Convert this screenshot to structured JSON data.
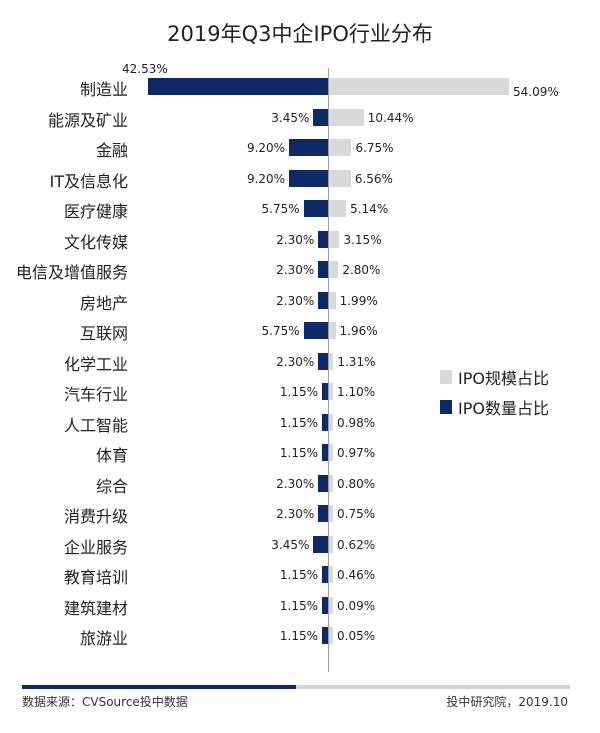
{
  "title": "2019年Q3中企IPO行业分布",
  "legend": {
    "items": [
      {
        "label": "IPO规模占比",
        "color": "#d9d9d9"
      },
      {
        "label": "IPO数量占比",
        "color": "#0d2a66"
      }
    ]
  },
  "footer": {
    "source": "数据来源：CVSource投中数据",
    "credit": "投中研究院，2019.10"
  },
  "colors": {
    "count_bar": "#0d2a66",
    "scale_bar": "#d9d9d9",
    "axis": "#9aa0a6"
  },
  "chart_data": {
    "type": "bar",
    "orientation": "horizontal-diverging",
    "title": "2019年Q3中企IPO行业分布",
    "xlabel": "",
    "ylabel": "",
    "legend_position": "right",
    "grid": false,
    "categories": [
      "制造业",
      "能源及矿业",
      "金融",
      "IT及信息化",
      "医疗健康",
      "文化传媒",
      "电信及增值服务",
      "房地产",
      "互联网",
      "化学工业",
      "汽车行业",
      "人工智能",
      "体育",
      "综合",
      "消费升级",
      "企业服务",
      "教育培训",
      "建筑建材",
      "旅游业"
    ],
    "series": [
      {
        "name": "IPO数量占比",
        "direction": "left",
        "color": "#0d2a66",
        "values": [
          42.53,
          3.45,
          9.2,
          9.2,
          5.75,
          2.3,
          2.3,
          2.3,
          5.75,
          2.3,
          1.15,
          1.15,
          1.15,
          2.3,
          2.3,
          3.45,
          1.15,
          1.15,
          1.15
        ],
        "labels": [
          "42.53%",
          "3.45%",
          "9.20%",
          "9.20%",
          "5.75%",
          "2.30%",
          "2.30%",
          "2.30%",
          "5.75%",
          "2.30%",
          "1.15%",
          "1.15%",
          "1.15%",
          "2.30%",
          "2.30%",
          "3.45%",
          "1.15%",
          "1.15%",
          "1.15%"
        ]
      },
      {
        "name": "IPO规模占比",
        "direction": "right",
        "color": "#d9d9d9",
        "values": [
          54.09,
          10.44,
          6.75,
          6.56,
          5.14,
          3.15,
          2.8,
          1.99,
          1.96,
          1.31,
          1.1,
          0.98,
          0.97,
          0.8,
          0.75,
          0.62,
          0.46,
          0.09,
          0.05
        ],
        "labels": [
          "54.09%",
          "10.44%",
          "6.75%",
          "6.56%",
          "5.14%",
          "3.15%",
          "2.80%",
          "1.99%",
          "1.96%",
          "1.31%",
          "1.10%",
          "0.98%",
          "0.97%",
          "0.80%",
          "0.75%",
          "0.62%",
          "0.46%",
          "0.09%",
          "0.05%"
        ]
      }
    ]
  }
}
